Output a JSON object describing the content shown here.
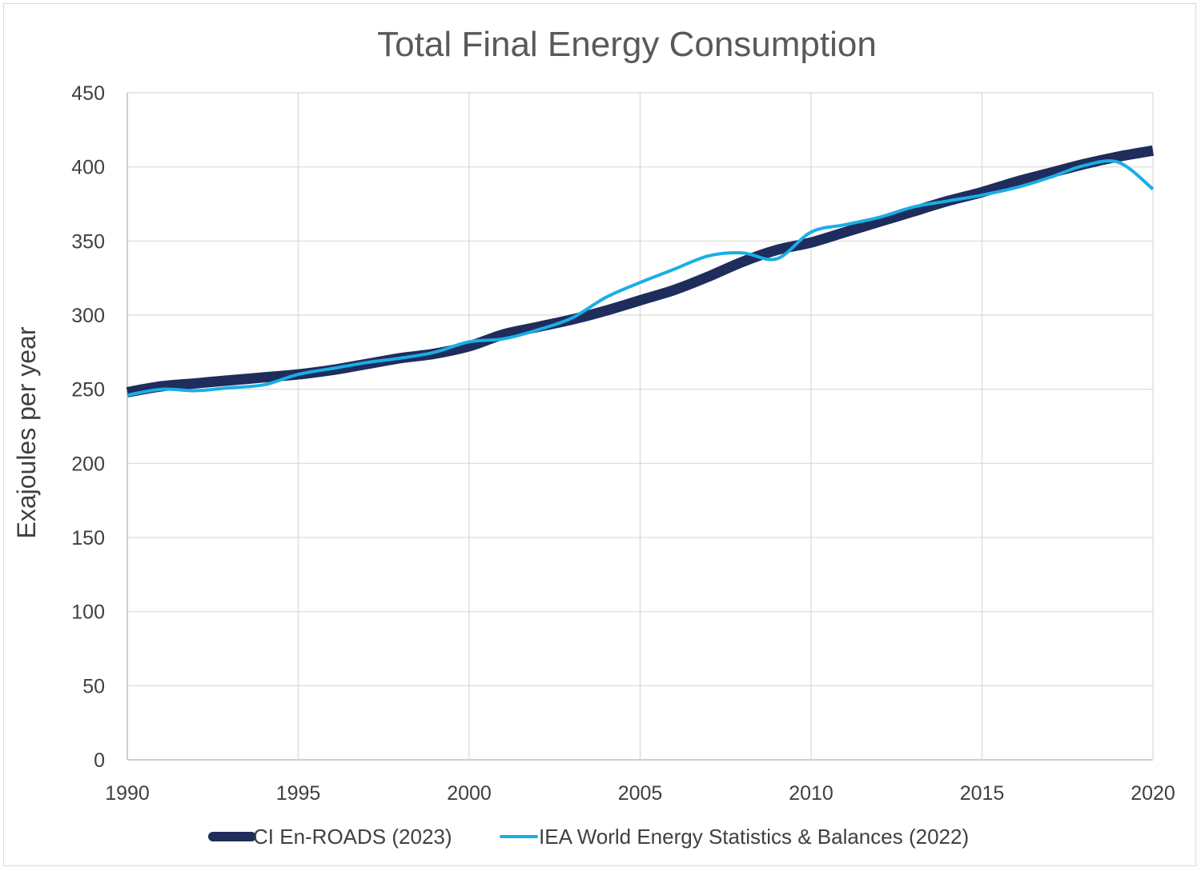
{
  "chart_data": {
    "type": "line",
    "title": "Total Final Energy Consumption",
    "xlabel": "",
    "ylabel": "Exajoules per year",
    "xlim": [
      1990,
      2020
    ],
    "ylim": [
      0,
      450
    ],
    "x_ticks": [
      1990,
      1995,
      2000,
      2005,
      2010,
      2015,
      2020
    ],
    "y_ticks": [
      0,
      50,
      100,
      150,
      200,
      250,
      300,
      350,
      400,
      450
    ],
    "grid": true,
    "legend_position": "bottom",
    "series": [
      {
        "name": "CI En-ROADS (2023)",
        "color": "#1f2d5c",
        "x": [
          1990,
          1991,
          1992,
          1993,
          1994,
          1995,
          1996,
          1997,
          1998,
          1999,
          2000,
          2001,
          2002,
          2003,
          2004,
          2005,
          2006,
          2007,
          2008,
          2009,
          2010,
          2011,
          2012,
          2013,
          2014,
          2015,
          2016,
          2017,
          2018,
          2019,
          2020
        ],
        "values": [
          248,
          252,
          254,
          256,
          258,
          260,
          263,
          267,
          271,
          274,
          279,
          287,
          292,
          297,
          303,
          310,
          317,
          326,
          336,
          344,
          349,
          356,
          363,
          370,
          377,
          383,
          390,
          396,
          402,
          407,
          411
        ]
      },
      {
        "name": "IEA World Energy Statistics & Balances (2022)",
        "color": "#1aaee6",
        "x": [
          1990,
          1991,
          1992,
          1993,
          1994,
          1995,
          1996,
          1997,
          1998,
          1999,
          2000,
          2001,
          2002,
          2003,
          2004,
          2005,
          2006,
          2007,
          2008,
          2009,
          2010,
          2011,
          2012,
          2013,
          2014,
          2015,
          2016,
          2017,
          2018,
          2019,
          2020
        ],
        "values": [
          246,
          250,
          249,
          251,
          253,
          260,
          264,
          268,
          271,
          275,
          282,
          284,
          290,
          298,
          312,
          322,
          331,
          340,
          342,
          338,
          356,
          361,
          366,
          373,
          377,
          381,
          386,
          393,
          401,
          403,
          385
        ]
      }
    ]
  }
}
